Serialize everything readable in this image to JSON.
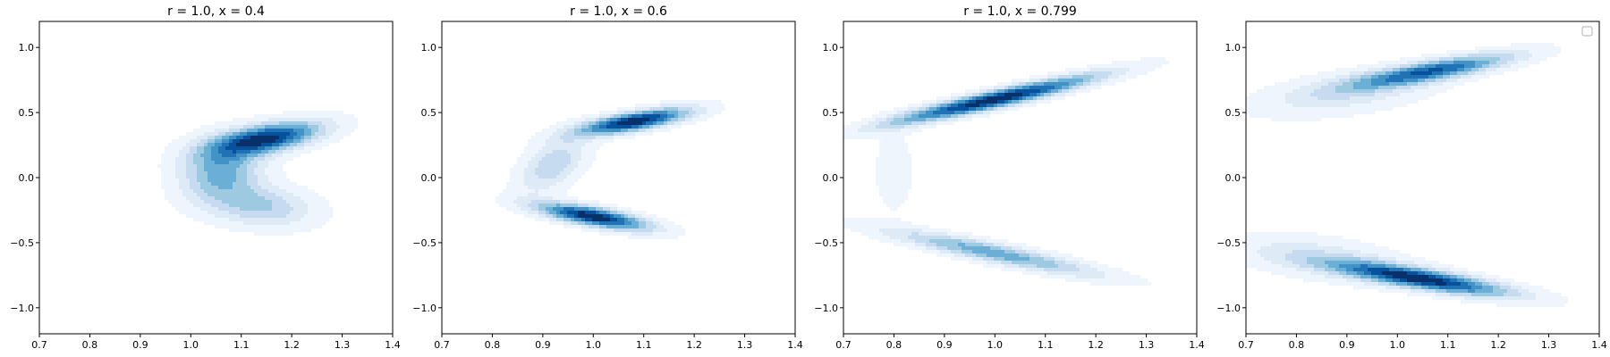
{
  "chart_data": [
    {
      "type": "kde_contour",
      "title": "r = 1.0, x = 0.4",
      "xlim": [
        0.7,
        1.4
      ],
      "ylim": [
        -1.2,
        1.2
      ],
      "xticks": [
        "0.7",
        "0.8",
        "0.9",
        "1.0",
        "1.1",
        "1.2",
        "1.3",
        "1.4"
      ],
      "yticks": [
        "−1.0",
        "−0.5",
        "0.0",
        "0.5",
        "1.0"
      ],
      "xtick_values": [
        0.7,
        0.8,
        0.9,
        1.0,
        1.1,
        1.2,
        1.3,
        1.4
      ],
      "ytick_values": [
        -1.0,
        -0.5,
        0.0,
        0.5,
        1.0
      ],
      "legend": false,
      "components": [
        {
          "cx": 1.15,
          "cy": 0.3,
          "sx": 0.075,
          "sy": 0.09,
          "rho": 0.55,
          "w": 1.0
        },
        {
          "cx": 1.06,
          "cy": 0.05,
          "sx": 0.055,
          "sy": 0.16,
          "rho": 0.1,
          "w": 0.55
        },
        {
          "cx": 1.14,
          "cy": -0.22,
          "sx": 0.07,
          "sy": 0.11,
          "rho": -0.2,
          "w": 0.4
        }
      ]
    },
    {
      "type": "kde_contour",
      "title": "r = 1.0, x = 0.6",
      "xlim": [
        0.7,
        1.4
      ],
      "ylim": [
        -1.2,
        1.2
      ],
      "xticks": [
        "0.7",
        "0.8",
        "0.9",
        "1.0",
        "1.1",
        "1.2",
        "1.3",
        "1.4"
      ],
      "yticks": [
        "−1.0",
        "−0.5",
        "0.0",
        "0.5",
        "1.0"
      ],
      "xtick_values": [
        0.7,
        0.8,
        0.9,
        1.0,
        1.1,
        1.2,
        1.3,
        1.4
      ],
      "ytick_values": [
        -1.0,
        -0.5,
        0.0,
        0.5,
        1.0
      ],
      "legend": false,
      "components": [
        {
          "cx": 1.08,
          "cy": 0.43,
          "sx": 0.075,
          "sy": 0.07,
          "rho": 0.7,
          "w": 1.0
        },
        {
          "cx": 0.92,
          "cy": 0.1,
          "sx": 0.045,
          "sy": 0.15,
          "rho": 0.5,
          "w": 0.35
        },
        {
          "cx": 1.0,
          "cy": -0.3,
          "sx": 0.075,
          "sy": 0.07,
          "rho": -0.7,
          "w": 1.0
        }
      ]
    },
    {
      "type": "kde_contour",
      "title": "r = 1.0, x = 0.799",
      "xlim": [
        0.7,
        1.4
      ],
      "ylim": [
        -1.2,
        1.2
      ],
      "xticks": [
        "0.7",
        "0.8",
        "0.9",
        "1.0",
        "1.1",
        "1.2",
        "1.3",
        "1.4"
      ],
      "yticks": [
        "−1.0",
        "−0.5",
        "0.0",
        "0.5",
        "1.0"
      ],
      "xtick_values": [
        0.7,
        0.8,
        0.9,
        1.0,
        1.1,
        1.2,
        1.3,
        1.4
      ],
      "ytick_values": [
        -1.0,
        -0.5,
        0.0,
        0.5,
        1.0
      ],
      "legend": false,
      "components": [
        {
          "cx": 1.0,
          "cy": 0.6,
          "sx": 0.14,
          "sy": 0.13,
          "rho": 0.93,
          "w": 1.0
        },
        {
          "cx": 0.8,
          "cy": 0.05,
          "sx": 0.03,
          "sy": 0.25,
          "rho": 0.0,
          "w": 0.1
        },
        {
          "cx": 1.0,
          "cy": -0.58,
          "sx": 0.14,
          "sy": 0.12,
          "rho": -0.9,
          "w": 0.55
        }
      ]
    },
    {
      "type": "kde_contour",
      "title": "",
      "xlim": [
        0.7,
        1.4
      ],
      "ylim": [
        -1.2,
        1.2
      ],
      "xticks": [
        "0.7",
        "0.8",
        "0.9",
        "1.0",
        "1.1",
        "1.2",
        "1.3",
        "1.4"
      ],
      "yticks": [
        "−1.0",
        "−0.5",
        "0.0",
        "0.5",
        "1.0"
      ],
      "xtick_values": [
        0.7,
        0.8,
        0.9,
        1.0,
        1.1,
        1.2,
        1.3,
        1.4
      ],
      "ytick_values": [
        -1.0,
        -0.5,
        0.0,
        0.5,
        1.0
      ],
      "legend": true,
      "legend_loc": "upper right",
      "components": [
        {
          "cx": 1.07,
          "cy": 0.82,
          "sx": 0.11,
          "sy": 0.09,
          "rho": 0.8,
          "w": 0.8
        },
        {
          "cx": 0.9,
          "cy": 0.65,
          "sx": 0.12,
          "sy": 0.12,
          "rho": 0.5,
          "w": 0.25
        },
        {
          "cx": 1.05,
          "cy": -0.78,
          "sx": 0.12,
          "sy": 0.09,
          "rho": -0.8,
          "w": 1.0
        },
        {
          "cx": 0.85,
          "cy": -0.62,
          "sx": 0.12,
          "sy": 0.12,
          "rho": -0.5,
          "w": 0.25
        }
      ]
    }
  ],
  "colormap": [
    "#eef5fc",
    "#deebf7",
    "#c6dbef",
    "#9ecae1",
    "#6baed6",
    "#4292c6",
    "#2171b5",
    "#08519c",
    "#08306b"
  ]
}
